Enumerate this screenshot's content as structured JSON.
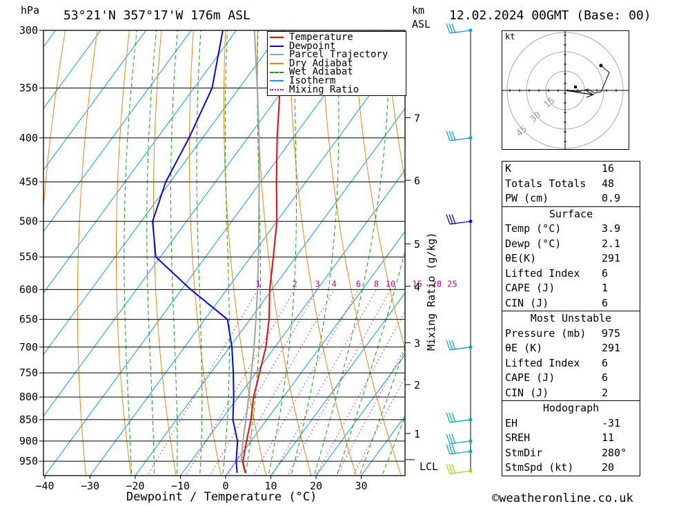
{
  "header": {
    "location": "53°21'N  357°17'W  176m  ASL",
    "datetime": "12.02.2024  00GMT  (Base: 00)",
    "hpa_label": "hPa",
    "km_label": "km",
    "asl_label": "ASL",
    "kt_label": "kt",
    "lcl_label": "LCL",
    "copyright": "©weatheronline.co.uk"
  },
  "chart_data": {
    "type": "line",
    "xlabel": "Dewpoint / Temperature (°C)",
    "ylabel_right": "Mixing Ratio (g/kg)",
    "xlim": [
      -40,
      40
    ],
    "ylim_hpa": [
      980,
      300
    ],
    "x_ticks": [
      -40,
      -30,
      -20,
      -10,
      0,
      10,
      20,
      30
    ],
    "pressure_levels": [
      300,
      350,
      400,
      450,
      500,
      550,
      600,
      650,
      700,
      750,
      800,
      850,
      900,
      950
    ],
    "km_ticks": [
      {
        "km": 1,
        "hpa": 882
      },
      {
        "km": 2,
        "hpa": 774
      },
      {
        "km": 3,
        "hpa": 692
      },
      {
        "km": 4,
        "hpa": 595
      },
      {
        "km": 5,
        "hpa": 531
      },
      {
        "km": 6,
        "hpa": 448
      },
      {
        "km": 7,
        "hpa": 379
      }
    ],
    "lcl_hpa": 946,
    "mixing_ratio_labels": [
      "1",
      "2",
      "3",
      "4",
      "6",
      "8",
      "10",
      "15",
      "20",
      "25"
    ],
    "legend": [
      {
        "name": "Temperature",
        "color": "#ff0000",
        "style": "solid"
      },
      {
        "name": "Dewpoint",
        "color": "#0000ff",
        "style": "solid"
      },
      {
        "name": "Parcel Trajectory",
        "color": "#a0a0a0",
        "style": "solid"
      },
      {
        "name": "Dry Adiabat",
        "color": "#ff8000",
        "style": "solid"
      },
      {
        "name": "Wet Adiabat",
        "color": "#00b000",
        "style": "dashed"
      },
      {
        "name": "Isotherm",
        "color": "#00a0ff",
        "style": "solid"
      },
      {
        "name": "Mixing Ratio",
        "color": "#d000a0",
        "style": "dotted"
      }
    ],
    "temperature": [
      [
        980,
        3.9
      ],
      [
        950,
        1.5
      ],
      [
        900,
        -1.0
      ],
      [
        850,
        -3.5
      ],
      [
        800,
        -6.6
      ],
      [
        750,
        -9.2
      ],
      [
        700,
        -12.0
      ],
      [
        650,
        -15.8
      ],
      [
        600,
        -20.5
      ],
      [
        550,
        -25.0
      ],
      [
        500,
        -30.0
      ],
      [
        450,
        -36.5
      ],
      [
        400,
        -43.5
      ],
      [
        350,
        -51.0
      ],
      [
        300,
        -59.5
      ]
    ],
    "dewpoint": [
      [
        980,
        2.1
      ],
      [
        950,
        0.0
      ],
      [
        900,
        -3.0
      ],
      [
        850,
        -7.5
      ],
      [
        800,
        -11.0
      ],
      [
        750,
        -15.0
      ],
      [
        700,
        -19.5
      ],
      [
        650,
        -25.0
      ],
      [
        600,
        -38.0
      ],
      [
        550,
        -51.0
      ],
      [
        500,
        -57.5
      ],
      [
        450,
        -61.0
      ],
      [
        400,
        -63.0
      ],
      [
        350,
        -66.0
      ],
      [
        300,
        -73.0
      ]
    ],
    "parcel": [
      [
        980,
        3.9
      ],
      [
        946,
        0.9
      ],
      [
        900,
        -1.8
      ],
      [
        850,
        -4.6
      ],
      [
        800,
        -7.7
      ],
      [
        750,
        -11.0
      ],
      [
        700,
        -14.6
      ],
      [
        650,
        -18.7
      ],
      [
        600,
        -23.2
      ],
      [
        550,
        -28.3
      ],
      [
        500,
        -34.0
      ],
      [
        450,
        -40.3
      ],
      [
        400,
        -47.5
      ],
      [
        350,
        -56.0
      ],
      [
        300,
        -66.0
      ]
    ],
    "winds": [
      {
        "hpa": 300,
        "color": "#00a0ff"
      },
      {
        "hpa": 400,
        "color": "#00a0ff"
      },
      {
        "hpa": 500,
        "color": "#0000ff"
      },
      {
        "hpa": 700,
        "color": "#00a0ff"
      },
      {
        "hpa": 850,
        "color": "#00b0b0"
      },
      {
        "hpa": 900,
        "color": "#00b0b0"
      },
      {
        "hpa": 925,
        "color": "#00b0b0"
      },
      {
        "hpa": 975,
        "color": "#a0e000"
      }
    ],
    "hodograph_rings": [
      "15",
      "30",
      "45"
    ]
  },
  "indices": [
    {
      "label": "K",
      "value": "16"
    },
    {
      "label": "Totals Totals",
      "value": "48"
    },
    {
      "label": "PW (cm)",
      "value": "0.9"
    }
  ],
  "surface": {
    "title": "Surface",
    "rows": [
      {
        "label": "Temp (°C)",
        "value": "3.9"
      },
      {
        "label": "Dewp (°C)",
        "value": "2.1"
      },
      {
        "label": "θE(K)",
        "value": "291"
      },
      {
        "label": "Lifted Index",
        "value": "6"
      },
      {
        "label": "CAPE (J)",
        "value": "1"
      },
      {
        "label": "CIN (J)",
        "value": "6"
      }
    ]
  },
  "most_unstable": {
    "title": "Most Unstable",
    "rows": [
      {
        "label": "Pressure (mb)",
        "value": "975"
      },
      {
        "label": "θE (K)",
        "value": "291"
      },
      {
        "label": "Lifted Index",
        "value": "6"
      },
      {
        "label": "CAPE (J)",
        "value": "6"
      },
      {
        "label": "CIN (J)",
        "value": "2"
      }
    ]
  },
  "hodograph_stats": {
    "title": "Hodograph",
    "rows": [
      {
        "label": "EH",
        "value": "-31"
      },
      {
        "label": "SREH",
        "value": "11"
      },
      {
        "label": "StmDir",
        "value": "280°"
      },
      {
        "label": "StmSpd (kt)",
        "value": "20"
      }
    ]
  }
}
